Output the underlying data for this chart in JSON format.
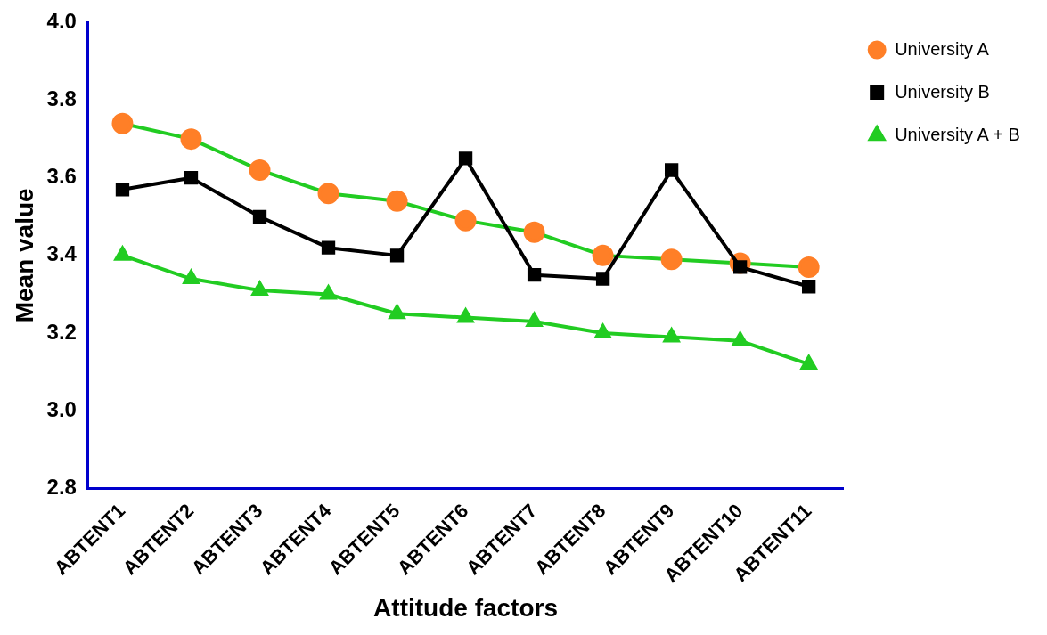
{
  "chart_data": {
    "type": "line",
    "xlabel": "Attitude factors",
    "ylabel": "Mean value",
    "categories": [
      "ABTENT1",
      "ABTENT2",
      "ABTENT3",
      "ABTENT4",
      "ABTENT5",
      "ABTENT6",
      "ABTENT7",
      "ABTENT8",
      "ABTENT9",
      "ABTENT10",
      "ABTENT11"
    ],
    "series": [
      {
        "name": "University A",
        "color": "#ff7f27",
        "marker": "circle",
        "values": [
          3.74,
          3.7,
          3.62,
          3.56,
          3.54,
          3.49,
          3.46,
          3.4,
          3.39,
          3.38,
          3.37
        ]
      },
      {
        "name": "University B",
        "color": "#000000",
        "marker": "square",
        "values": [
          3.57,
          3.6,
          3.5,
          3.42,
          3.4,
          3.65,
          3.35,
          3.34,
          3.62,
          3.37,
          3.32
        ]
      },
      {
        "name": "University A + B",
        "color": "#22cc22",
        "marker": "triangle",
        "values": [
          3.4,
          3.34,
          3.31,
          3.3,
          3.25,
          3.24,
          3.23,
          3.2,
          3.19,
          3.18,
          3.12
        ]
      }
    ],
    "ylim": [
      2.8,
      4.0
    ],
    "yticks": [
      2.8,
      {
        "value": 3,
        "label": "3.0"
      },
      3.2,
      3.4,
      3.6,
      3.8,
      {
        "value": 4,
        "label": "4.0"
      }
    ],
    "grid": false,
    "legend": "top right",
    "line_style": "solid"
  }
}
